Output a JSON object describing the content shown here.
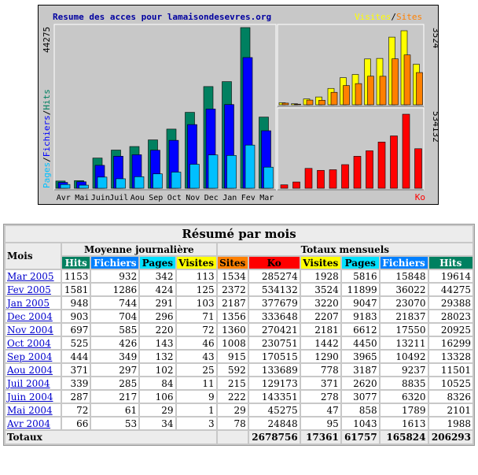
{
  "chart_data": {
    "type": "bar",
    "title": "Resume des acces pour lamaisondesevres.org",
    "categories": [
      "Avr",
      "Mai",
      "Juin",
      "Juil",
      "Aou",
      "Sep",
      "Oct",
      "Nov",
      "Dec",
      "Jan",
      "Fev",
      "Mar"
    ],
    "panels": [
      {
        "id": "main",
        "legend": [
          "Pages",
          "/",
          "Fichiers",
          "/",
          "Hits"
        ],
        "max_label": "44275",
        "ylim": [
          0,
          44275
        ],
        "series": [
          {
            "name": "Hits",
            "color": "#008060",
            "values": [
              1988,
              2101,
              8326,
              10525,
              11501,
              13328,
              16299,
              20925,
              28023,
              29388,
              44275,
              19614
            ]
          },
          {
            "name": "Fichiers",
            "color": "#0000ff",
            "values": [
              1613,
              1789,
              6320,
              8835,
              9237,
              10492,
              13211,
              17550,
              21837,
              23070,
              36022,
              15848
            ]
          },
          {
            "name": "Pages",
            "color": "#00c0ff",
            "values": [
              1043,
              858,
              3077,
              2620,
              3187,
              3965,
              4450,
              6612,
              9183,
              9047,
              11899,
              5816
            ]
          }
        ]
      },
      {
        "id": "visits",
        "legend": [
          "Visites",
          "/",
          "Sites"
        ],
        "max_label": "3524",
        "ylim": [
          0,
          3524
        ],
        "series": [
          {
            "name": "Visites",
            "color": "#ffff00",
            "values": [
              95,
              47,
              278,
              371,
              778,
              1290,
              1442,
              2181,
              2207,
              3220,
              3524,
              1928
            ]
          },
          {
            "name": "Sites",
            "color": "#ff8000",
            "values": [
              78,
              29,
              222,
              215,
              592,
              915,
              1008,
              1360,
              1356,
              2187,
              2372,
              1534
            ]
          }
        ]
      },
      {
        "id": "ko",
        "legend": [
          "Ko"
        ],
        "max_label": "534132",
        "ylim": [
          0,
          534132
        ],
        "series": [
          {
            "name": "Ko",
            "color": "#ff0000",
            "values": [
              24848,
              45275,
              143351,
              129173,
              133689,
              170515,
              230751,
              270421,
              333648,
              377679,
              534132,
              285274
            ]
          }
        ]
      }
    ]
  },
  "summary": {
    "title": "Résumé par mois",
    "mois_label": "Mois",
    "group_daily": "Moyenne journalière",
    "group_monthly": "Totaux mensuels",
    "daily_cols": [
      {
        "label": "Hits",
        "color": "#008060",
        "text": "#ffffff"
      },
      {
        "label": "Fichiers",
        "color": "#0080ff",
        "text": "#ffffff"
      },
      {
        "label": "Pages",
        "color": "#00e0ff",
        "text": "#000000"
      },
      {
        "label": "Visites",
        "color": "#ffff00",
        "text": "#000000"
      }
    ],
    "monthly_cols": [
      {
        "label": "Sites",
        "color": "#ff8000",
        "text": "#000000"
      },
      {
        "label": "Ko",
        "color": "#ff0000",
        "text": "#000000"
      },
      {
        "label": "Visites",
        "color": "#ffff00",
        "text": "#000000"
      },
      {
        "label": "Pages",
        "color": "#00e0ff",
        "text": "#000000"
      },
      {
        "label": "Fichiers",
        "color": "#0080ff",
        "text": "#ffffff"
      },
      {
        "label": "Hits",
        "color": "#008060",
        "text": "#ffffff"
      }
    ],
    "rows": [
      {
        "mois": "Mar 2005",
        "daily": [
          "1153",
          "932",
          "342",
          "113"
        ],
        "monthly": [
          "1534",
          "285274",
          "1928",
          "5816",
          "15848",
          "19614"
        ]
      },
      {
        "mois": "Fev 2005",
        "daily": [
          "1581",
          "1286",
          "424",
          "125"
        ],
        "monthly": [
          "2372",
          "534132",
          "3524",
          "11899",
          "36022",
          "44275"
        ]
      },
      {
        "mois": "Jan 2005",
        "daily": [
          "948",
          "744",
          "291",
          "103"
        ],
        "monthly": [
          "2187",
          "377679",
          "3220",
          "9047",
          "23070",
          "29388"
        ]
      },
      {
        "mois": "Dec 2004",
        "daily": [
          "903",
          "704",
          "296",
          "71"
        ],
        "monthly": [
          "1356",
          "333648",
          "2207",
          "9183",
          "21837",
          "28023"
        ]
      },
      {
        "mois": "Nov 2004",
        "daily": [
          "697",
          "585",
          "220",
          "72"
        ],
        "monthly": [
          "1360",
          "270421",
          "2181",
          "6612",
          "17550",
          "20925"
        ]
      },
      {
        "mois": "Oct 2004",
        "daily": [
          "525",
          "426",
          "143",
          "46"
        ],
        "monthly": [
          "1008",
          "230751",
          "1442",
          "4450",
          "13211",
          "16299"
        ]
      },
      {
        "mois": "Sep 2004",
        "daily": [
          "444",
          "349",
          "132",
          "43"
        ],
        "monthly": [
          "915",
          "170515",
          "1290",
          "3965",
          "10492",
          "13328"
        ]
      },
      {
        "mois": "Aou 2004",
        "daily": [
          "371",
          "297",
          "102",
          "25"
        ],
        "monthly": [
          "592",
          "133689",
          "778",
          "3187",
          "9237",
          "11501"
        ]
      },
      {
        "mois": "Juil 2004",
        "daily": [
          "339",
          "285",
          "84",
          "11"
        ],
        "monthly": [
          "215",
          "129173",
          "371",
          "2620",
          "8835",
          "10525"
        ]
      },
      {
        "mois": "Juin 2004",
        "daily": [
          "287",
          "217",
          "106",
          "9"
        ],
        "monthly": [
          "222",
          "143351",
          "278",
          "3077",
          "6320",
          "8326"
        ]
      },
      {
        "mois": "Mai 2004",
        "daily": [
          "72",
          "61",
          "29",
          "1"
        ],
        "monthly": [
          "29",
          "45275",
          "47",
          "858",
          "1789",
          "2101"
        ]
      },
      {
        "mois": "Avr 2004",
        "daily": [
          "66",
          "53",
          "34",
          "3"
        ],
        "monthly": [
          "78",
          "24848",
          "95",
          "1043",
          "1613",
          "1988"
        ]
      }
    ],
    "totals": {
      "label": "Totaux",
      "monthly": [
        "",
        "2678756",
        "17361",
        "61757",
        "165824",
        "206293"
      ]
    }
  }
}
